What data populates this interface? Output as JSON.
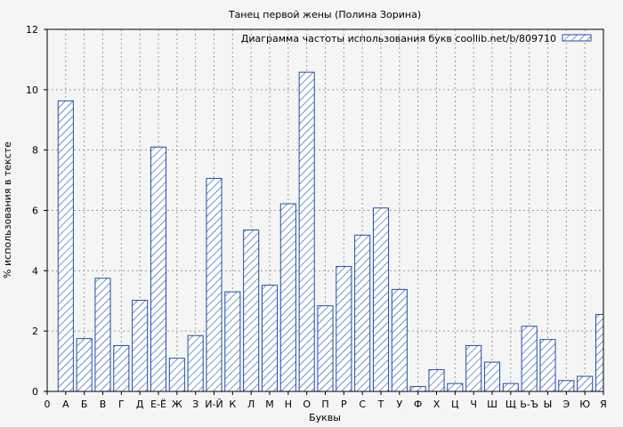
{
  "chart_data": {
    "type": "bar",
    "title": "Танец первой жены (Полина Зорина)",
    "xlabel": "Буквы",
    "ylabel": "% использования в тексте",
    "ylim": [
      0,
      12
    ],
    "yticks": [
      0,
      2,
      4,
      6,
      8,
      10,
      12
    ],
    "grid": true,
    "legend_position": "top-right",
    "categories": [
      "А",
      "Б",
      "В",
      "Г",
      "Д",
      "Е-Ё",
      "Ж",
      "З",
      "И-Й",
      "К",
      "Л",
      "М",
      "Н",
      "О",
      "П",
      "Р",
      "С",
      "Т",
      "У",
      "Ф",
      "Х",
      "Ц",
      "Ч",
      "Ш",
      "Щ",
      "Ь-Ъ",
      "Ы",
      "Э",
      "Ю",
      "Я"
    ],
    "x_tick_labels": [
      "0",
      "А",
      "Б",
      "В",
      "Г",
      "Д",
      "Е-Ё",
      "Ж",
      "З",
      "И-Й",
      "К",
      "Л",
      "М",
      "Н",
      "О",
      "П",
      "Р",
      "С",
      "Т",
      "У",
      "Ф",
      "Х",
      "Ц",
      "Ч",
      "Ш",
      "Щ",
      "Ь-Ъ",
      "Ы",
      "Э",
      "Ю",
      "Я"
    ],
    "series": [
      {
        "name": "Диаграмма частоты использования букв coollib.net/b/809710",
        "color": "#1f4fa8",
        "values": [
          9.63,
          1.75,
          3.75,
          1.52,
          3.02,
          8.1,
          1.1,
          1.85,
          7.06,
          3.3,
          5.35,
          3.52,
          6.22,
          10.58,
          2.84,
          4.14,
          5.18,
          6.08,
          3.38,
          0.16,
          0.72,
          0.26,
          1.52,
          0.97,
          0.26,
          2.16,
          1.72,
          0.36,
          0.5,
          2.55
        ]
      }
    ]
  },
  "colors": {
    "background": "#f5f5f5",
    "grid": "#9a9a9a",
    "bar_stroke": "#1f4fa8"
  }
}
